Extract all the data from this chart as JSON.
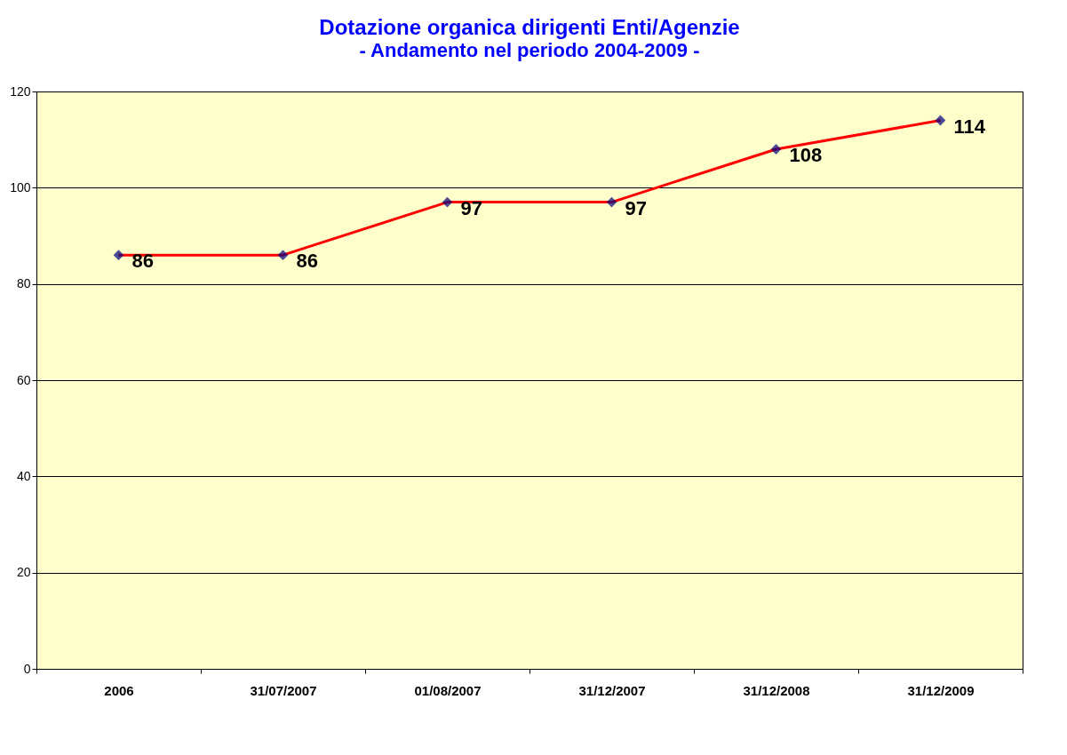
{
  "chart_data": {
    "type": "line",
    "title": "Dotazione organica dirigenti Enti/Agenzie",
    "subtitle": "- Andamento nel periodo 2004-2009 -",
    "categories": [
      "2006",
      "31/07/2007",
      "01/08/2007",
      "31/12/2007",
      "31/12/2008",
      "31/12/2009"
    ],
    "series": [
      {
        "color": "#ff0000",
        "values": [
          86,
          86,
          97,
          97,
          108,
          114
        ]
      }
    ],
    "ylim": [
      0,
      120
    ],
    "yticks": [
      0,
      20,
      40,
      60,
      80,
      100,
      120
    ],
    "grid": "y",
    "marker": "diamond",
    "line_style": "solid",
    "data_labels": true,
    "legend": false
  }
}
